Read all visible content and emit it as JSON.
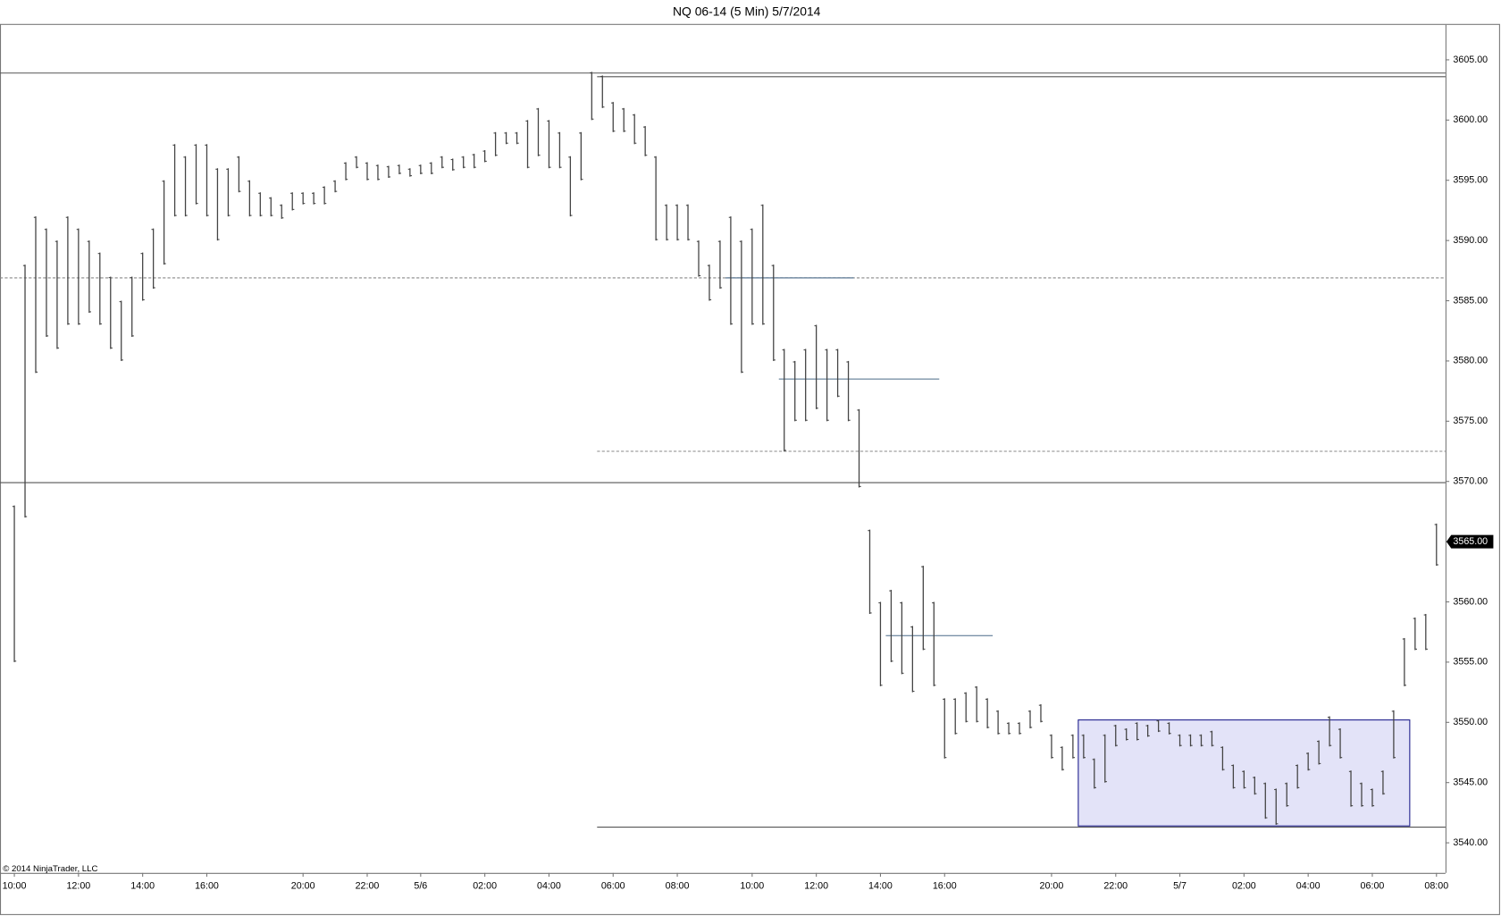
{
  "chart_data": {
    "type": "ohlc",
    "title": "NQ 06-14 (5 Min)  5/7/2014",
    "copyright": "© 2014 NinjaTrader, LLC",
    "categories": [
      "10:00",
      null,
      null,
      null,
      null,
      null,
      "12:00",
      null,
      null,
      null,
      null,
      null,
      "14:00",
      null,
      null,
      null,
      null,
      null,
      "16:00",
      null,
      null,
      null,
      null,
      null,
      null,
      null,
      null,
      "20:00",
      null,
      null,
      null,
      null,
      null,
      "22:00",
      null,
      null,
      null,
      null,
      "5/6",
      null,
      null,
      null,
      null,
      null,
      "02:00",
      null,
      null,
      null,
      null,
      null,
      "04:00",
      null,
      null,
      null,
      null,
      null,
      "06:00",
      null,
      null,
      null,
      null,
      null,
      "08:00",
      null,
      null,
      null,
      null,
      null,
      null,
      "10:00",
      null,
      null,
      null,
      null,
      null,
      "12:00",
      null,
      null,
      null,
      null,
      null,
      "14:00",
      null,
      null,
      null,
      null,
      null,
      "16:00",
      null,
      null,
      null,
      null,
      null,
      null,
      null,
      null,
      null,
      "20:00",
      null,
      null,
      null,
      null,
      null,
      "22:00",
      null,
      null,
      null,
      null,
      null,
      "5/7",
      null,
      null,
      null,
      null,
      null,
      "02:00",
      null,
      null,
      null,
      null,
      null,
      "04:00",
      null,
      null,
      null,
      null,
      null,
      "06:00",
      null,
      null,
      null,
      null,
      null,
      "08:00"
    ],
    "high": [
      3568,
      3588,
      3592,
      3591,
      3590,
      3592,
      3591,
      3590,
      3589,
      3587,
      3585,
      3587,
      3589,
      3591,
      3595,
      3598,
      3597,
      3598,
      3598,
      3596,
      3596,
      3597,
      3595,
      3594,
      3593.6,
      3593,
      3594,
      3594,
      3594,
      3594.5,
      3595,
      3596.5,
      3597,
      3596.5,
      3596.3,
      3596.2,
      3596.3,
      3596,
      3596.3,
      3596.5,
      3597,
      3596.8,
      3597,
      3597.2,
      3597.5,
      3599,
      3599,
      3599,
      3600,
      3601,
      3600,
      3599,
      3597,
      3599,
      3604,
      3603.7,
      3601.5,
      3601,
      3600.5,
      3599.5,
      3597,
      3593,
      3593,
      3593,
      3590,
      3588,
      3590,
      3592,
      3590,
      3591,
      3593,
      3588,
      3581,
      3580,
      3581,
      3583,
      3581,
      3581,
      3580,
      3576,
      3566,
      3560,
      3561,
      3560,
      3558,
      3563,
      3560,
      3552,
      3552,
      3552.5,
      3553,
      3552,
      3551,
      3550,
      3550,
      3551,
      3551.5,
      3549,
      3548,
      3549,
      3549,
      3547,
      3549,
      3549.8,
      3549.5,
      3550,
      3549.8,
      3550.2,
      3550,
      3549,
      3549,
      3549,
      3549.3,
      3548,
      3546.5,
      3546,
      3545.5,
      3545,
      3544.5,
      3545,
      3546.5,
      3547.5,
      3548.5,
      3550.5,
      3549.5,
      3546,
      3545,
      3544.5,
      3546,
      3551,
      3557,
      3558.7,
      3559,
      3566.5
    ],
    "low": [
      3555,
      3567,
      3579,
      3582,
      3581,
      3583,
      3583,
      3584,
      3583,
      3581,
      3580,
      3582,
      3585,
      3586,
      3588,
      3592,
      3592,
      3593,
      3592,
      3590,
      3592,
      3594,
      3592,
      3592,
      3592,
      3591.8,
      3592.5,
      3593,
      3593,
      3593,
      3594,
      3595,
      3596,
      3595,
      3595,
      3595.2,
      3595.5,
      3595.3,
      3595.5,
      3595.5,
      3596,
      3595.8,
      3596,
      3596,
      3596.5,
      3597,
      3598,
      3598,
      3596,
      3597,
      3596,
      3596,
      3592,
      3595,
      3600,
      3601,
      3599,
      3599,
      3598,
      3597,
      3590,
      3590,
      3590,
      3590,
      3587,
      3585,
      3586,
      3583,
      3579,
      3583,
      3583,
      3580,
      3572.5,
      3575,
      3575,
      3576,
      3575,
      3577,
      3575,
      3569.5,
      3559,
      3553,
      3555,
      3554,
      3552.5,
      3556,
      3553,
      3547,
      3549,
      3550,
      3550,
      3549.5,
      3549,
      3549,
      3549,
      3549.5,
      3550,
      3547,
      3546,
      3547,
      3547,
      3544.5,
      3545,
      3548,
      3548.5,
      3548.5,
      3548.8,
      3549.2,
      3549,
      3548,
      3548,
      3548,
      3548,
      3546,
      3544.5,
      3544.5,
      3544,
      3542,
      3541.5,
      3543,
      3544.5,
      3546,
      3546.5,
      3548,
      3547,
      3543,
      3543,
      3543,
      3544,
      3547,
      3553,
      3556,
      3556,
      3563
    ],
    "bar_color": "#444444",
    "levels": [
      {
        "price": 3603.9,
        "style": "solid",
        "color": "#555555",
        "start": 0
      },
      {
        "price": 3603.6,
        "style": "solid",
        "color": "#555555",
        "start": 55
      },
      {
        "price": 3586.9,
        "style": "dashed",
        "color": "#888888",
        "start": 0
      },
      {
        "price": 3586.9,
        "style": "solid",
        "color": "#4a6a88",
        "start": 67,
        "end": 79
      },
      {
        "price": 3578.5,
        "style": "solid",
        "color": "#4a6a88",
        "start": 72,
        "end": 87
      },
      {
        "price": 3572.5,
        "style": "dashed",
        "color": "#888888",
        "start": 55
      },
      {
        "price": 3569.9,
        "style": "solid",
        "color": "#555555",
        "start": 0
      },
      {
        "price": 3557.2,
        "style": "solid",
        "color": "#4a6a88",
        "start": 82,
        "end": 92
      },
      {
        "price": 3541.3,
        "style": "solid",
        "color": "#555555",
        "start": 55
      }
    ],
    "zone": {
      "top": 3550.2,
      "bottom": 3541.4,
      "start": 100,
      "end": 131,
      "fill": "#e3e3f8",
      "stroke": "#1c1c8a"
    },
    "last_price": {
      "value": 3565,
      "label": "3565.00"
    },
    "ylim": [
      3537.5,
      3607.9
    ],
    "yticks": [
      {
        "value": 3540,
        "label": "3540.00"
      },
      {
        "value": 3545,
        "label": "3545.00"
      },
      {
        "value": 3550,
        "label": "3550.00"
      },
      {
        "value": 3555,
        "label": "3555.00"
      },
      {
        "value": 3560,
        "label": "3560.00"
      },
      {
        "value": 3565,
        "label": "3565.00"
      },
      {
        "value": 3570,
        "label": "3570.00"
      },
      {
        "value": 3575,
        "label": "3575.00"
      },
      {
        "value": 3580,
        "label": "3580.00"
      },
      {
        "value": 3585,
        "label": "3585.00"
      },
      {
        "value": 3590,
        "label": "3590.00"
      },
      {
        "value": 3595,
        "label": "3595.00"
      },
      {
        "value": 3600,
        "label": "3600.00"
      },
      {
        "value": 3605,
        "label": "3605.00"
      }
    ]
  }
}
